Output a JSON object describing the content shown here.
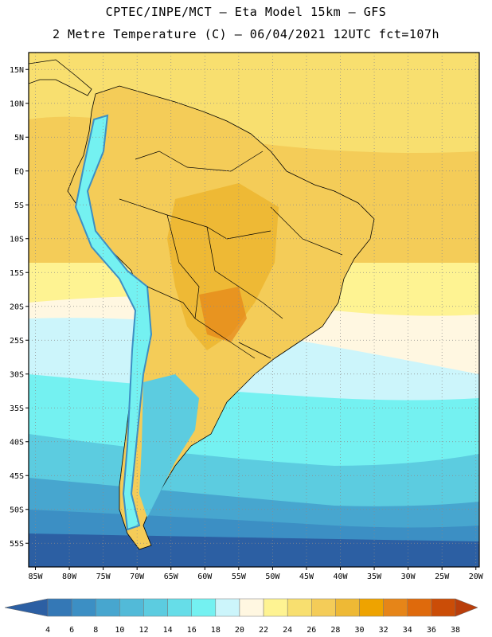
{
  "header": {
    "title": "CPTEC/INPE/MCT –  Eta Model 15km – GFS",
    "subtitle": "2 Metre Temperature (C) – 06/04/2021 12UTC fct=107h"
  },
  "map": {
    "lat_labels": [
      "15N",
      "10N",
      "5N",
      "EQ",
      "5S",
      "10S",
      "15S",
      "20S",
      "25S",
      "30S",
      "35S",
      "40S",
      "45S",
      "50S",
      "55S"
    ],
    "lon_labels": [
      "85W",
      "80W",
      "75W",
      "70W",
      "65W",
      "60W",
      "55W",
      "50W",
      "45W",
      "40W",
      "35W",
      "30W",
      "25W",
      "20W"
    ],
    "grid": "dotted",
    "region": "South America"
  },
  "legend": {
    "ticks": [
      "4",
      "6",
      "8",
      "10",
      "12",
      "14",
      "16",
      "18",
      "20",
      "22",
      "24",
      "26",
      "28",
      "30",
      "32",
      "34",
      "36",
      "38"
    ],
    "colors": [
      "#2c5fa3",
      "#3478b6",
      "#3c8fc4",
      "#47a6cf",
      "#52bad8",
      "#5ccce0",
      "#66dde8",
      "#74f1f1",
      "#ccf5fb",
      "#fff7e1",
      "#fef392",
      "#f8df6f",
      "#f4cc58",
      "#eeb935",
      "#eea300",
      "#e68518",
      "#df6a0c",
      "#cb4d07",
      "#b93e0b"
    ]
  }
}
